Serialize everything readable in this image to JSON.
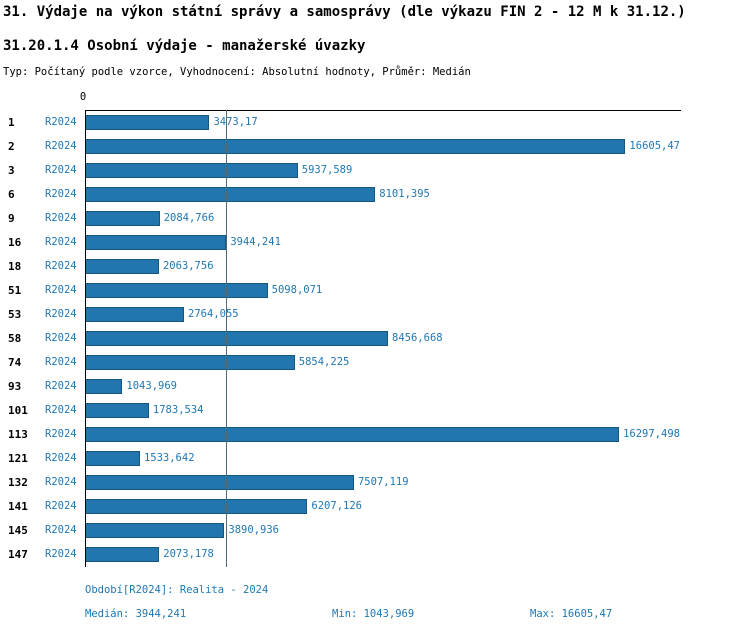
{
  "title": "31. Výdaje na výkon státní správy a samosprávy (dle výkazu FIN 2 - 12 M k 31.12.)",
  "subtitle": "31.20.1.4 Osobní výdaje - manažerské úvazky",
  "meta": "Typ: Počítaný podle vzorce, Vyhodnocení: Absolutní hodnoty, Průměr: Medián",
  "axis": {
    "zero_label": "0"
  },
  "chart_data": {
    "type": "bar",
    "orientation": "horizontal",
    "series_label": "R2024",
    "categories": [
      "1",
      "2",
      "3",
      "6",
      "9",
      "16",
      "18",
      "51",
      "53",
      "58",
      "74",
      "93",
      "101",
      "113",
      "121",
      "132",
      "141",
      "145",
      "147"
    ],
    "values": [
      3473.17,
      16605.47,
      5937.589,
      8101.395,
      2084.766,
      3944.241,
      2063.756,
      5098.071,
      2764.055,
      8456.668,
      5854.225,
      1043.969,
      1783.534,
      16297.498,
      1533.642,
      7507.119,
      6207.126,
      3890.936,
      2073.178
    ],
    "value_labels": [
      "3473,17",
      "16605,47",
      "5937,589",
      "8101,395",
      "2084,766",
      "3944,241",
      "2063,756",
      "5098,071",
      "2764,055",
      "8456,668",
      "5854,225",
      "1043,969",
      "1783,534",
      "16297,498",
      "1533,642",
      "7507,119",
      "6207,126",
      "3890,936",
      "2073,178"
    ],
    "xlim": [
      0,
      16605.47
    ],
    "median": 3944.241,
    "bar_color": "#2176ae",
    "grid": false,
    "legend": "none"
  },
  "footer": {
    "period": "Období[R2024]: Realita - 2024",
    "median": "Medián: 3944,241",
    "min": "Min: 1043,969",
    "max": "Max: 16605,47"
  }
}
